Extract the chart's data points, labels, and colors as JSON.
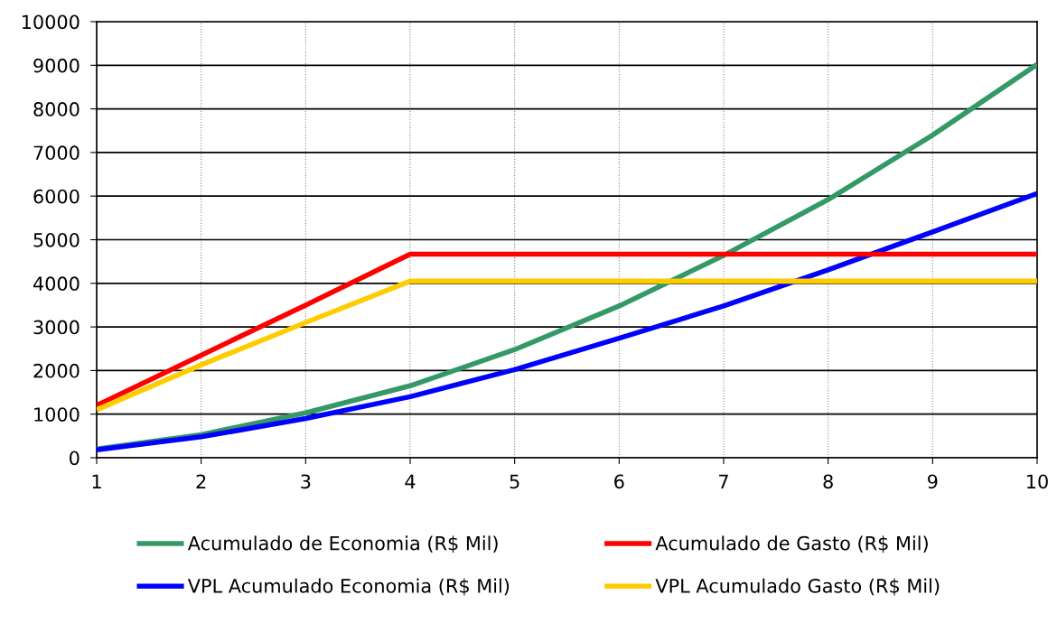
{
  "chart_data": {
    "type": "line",
    "x": [
      1,
      2,
      3,
      4,
      5,
      6,
      7,
      8,
      9,
      10
    ],
    "series": [
      {
        "name": "Acumulado de Economia (R$ Mil)",
        "color": "#339966",
        "values": [
          200,
          530,
          1030,
          1650,
          2480,
          3480,
          4640,
          5920,
          7400,
          9020
        ]
      },
      {
        "name": "VPL Acumulado Economia (R$ Mil)",
        "color": "#0000ff",
        "values": [
          180,
          480,
          900,
          1400,
          2020,
          2740,
          3480,
          4310,
          5180,
          6060
        ]
      },
      {
        "name": "Acumulado de Gasto (R$ Mil)",
        "color": "#ff0000",
        "values": [
          1200,
          2350,
          3500,
          4670,
          4670,
          4670,
          4670,
          4670,
          4670,
          4670
        ]
      },
      {
        "name": "VPL Acumulado Gasto (R$ Mil)",
        "color": "#ffcc00",
        "values": [
          1100,
          2130,
          3100,
          4050,
          4050,
          4050,
          4050,
          4050,
          4050,
          4050
        ]
      }
    ],
    "xlim": [
      1,
      10
    ],
    "xticks": [
      1,
      2,
      3,
      4,
      5,
      6,
      7,
      8,
      9,
      10
    ],
    "ylim": [
      0,
      10000
    ],
    "yticks": [
      0,
      1000,
      2000,
      3000,
      4000,
      5000,
      6000,
      7000,
      8000,
      9000,
      10000
    ],
    "grid": true,
    "legend": "bottom",
    "marker": "none",
    "line_style": "solid"
  }
}
